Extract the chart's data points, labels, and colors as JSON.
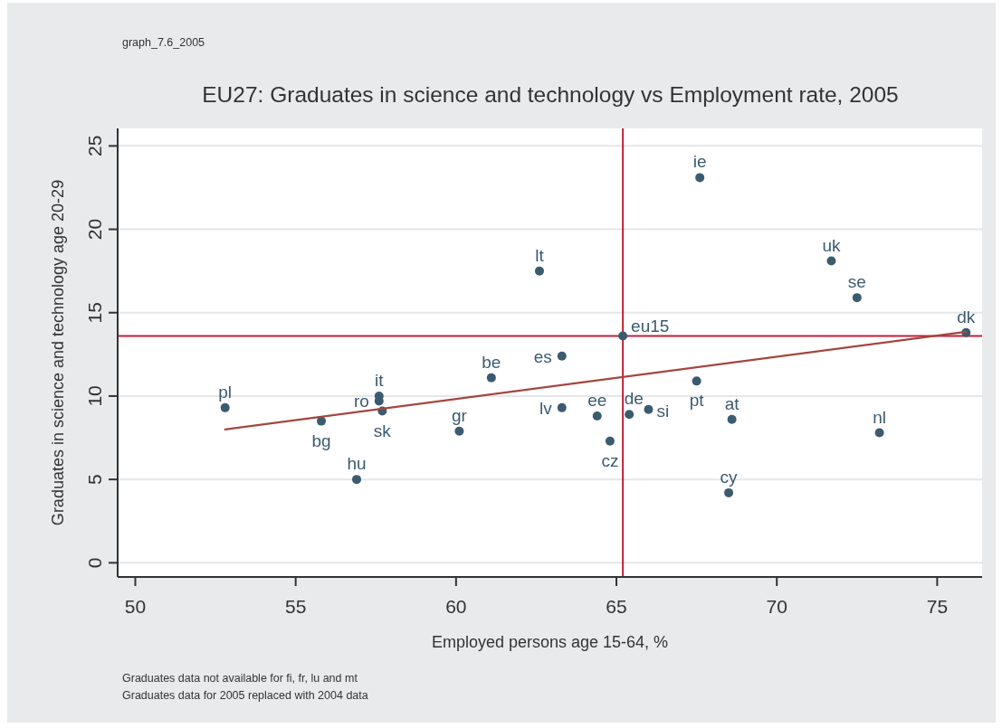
{
  "chart_data": {
    "type": "scatter",
    "title": "EU27: Graduates in science and technology vs Employment rate, 2005",
    "xlabel": "Employed persons age 15-64, %",
    "ylabel": "Graduates in science and technology age 20-29",
    "annotations": [
      "graph_7.6_2005",
      "Graduates data not available for fi, fr, lu and mt",
      "Graduates data for 2005 replaced with 2004 data"
    ],
    "xlim": [
      49.45,
      76.4
    ],
    "xticks": [
      50,
      55,
      60,
      65,
      70,
      75
    ],
    "ylim": [
      -0.85,
      26.05
    ],
    "yticks": [
      0,
      5,
      10,
      15,
      20,
      25
    ],
    "grid": "y",
    "series": [
      {
        "type": "scatter",
        "color": "#3b5b6f",
        "marker": "circle",
        "x": [
          52.8,
          55.8,
          56.9,
          57.6,
          57.6,
          57.7,
          60.1,
          61.1,
          62.6,
          63.3,
          63.3,
          64.4,
          64.8,
          65.2,
          65.4,
          66.0,
          67.5,
          67.6,
          68.5,
          68.6,
          71.7,
          72.5,
          73.2,
          75.9
        ],
        "values": [
          9.3,
          8.5,
          5.0,
          10.0,
          9.7,
          9.1,
          7.9,
          11.1,
          17.5,
          12.4,
          9.3,
          8.8,
          7.3,
          13.6,
          8.9,
          9.2,
          10.9,
          23.1,
          4.2,
          8.6,
          18.1,
          15.9,
          7.8,
          13.8
        ],
        "value_labels": [
          "pl",
          "bg",
          "hu",
          "it",
          "ro",
          "sk",
          "gr",
          "be",
          "lt",
          "es",
          "lv",
          "ee",
          "cz",
          "eu15",
          "de",
          "si",
          "pt",
          "ie",
          "cy",
          "at",
          "uk",
          "se",
          "nl",
          "dk"
        ]
      },
      {
        "type": "line",
        "color": "#a3463d",
        "line_style": "solid",
        "x": [
          52.8,
          75.9
        ],
        "values": [
          8.0,
          13.85
        ]
      }
    ],
    "ref_lines": [
      {
        "axis": "x",
        "value": 65.2,
        "color": "#c41e3a"
      },
      {
        "axis": "y",
        "value": 13.6,
        "color": "#c41e3a"
      }
    ]
  }
}
